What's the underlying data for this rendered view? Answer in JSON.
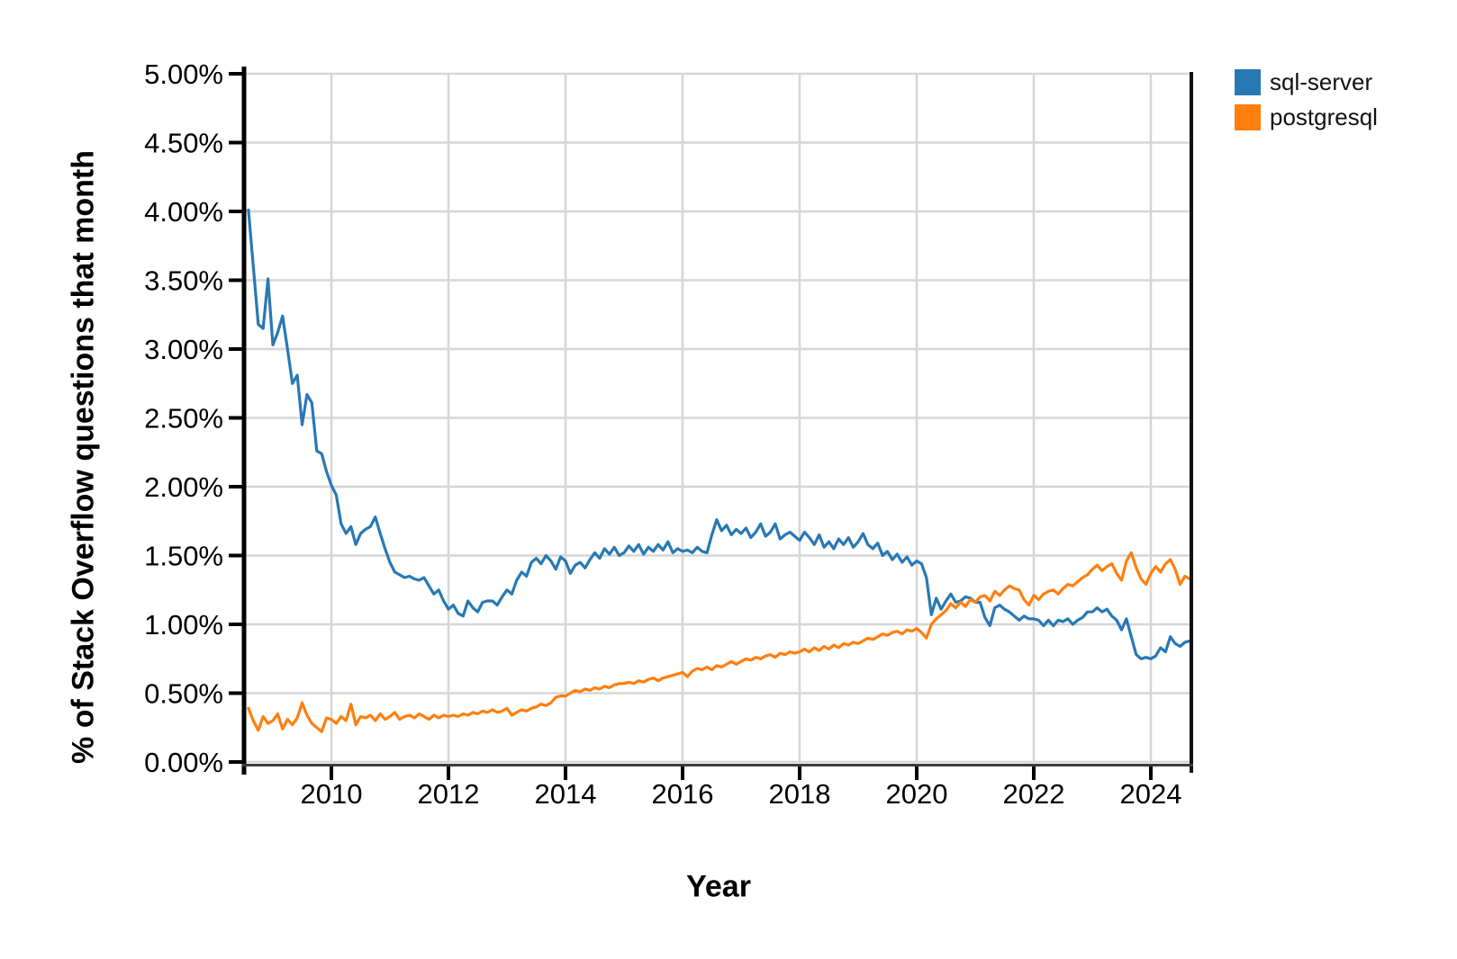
{
  "chart_data": {
    "type": "line",
    "title": "",
    "xlabel": "Year",
    "ylabel": "% of Stack Overflow questions that month",
    "x_start_year": 2008,
    "x_start_month": 8,
    "points_per_year": 12,
    "xlim": [
      2008.54,
      2024.69
    ],
    "ylim": [
      0,
      5
    ],
    "grid": true,
    "x_ticks": [
      2010,
      2012,
      2014,
      2016,
      2018,
      2020,
      2022,
      2024
    ],
    "y_ticks": [
      {
        "value": 0.0,
        "label": "0.00%"
      },
      {
        "value": 0.5,
        "label": "0.50%"
      },
      {
        "value": 1.0,
        "label": "1.00%"
      },
      {
        "value": 1.5,
        "label": "1.50%"
      },
      {
        "value": 2.0,
        "label": "2.00%"
      },
      {
        "value": 2.5,
        "label": "2.50%"
      },
      {
        "value": 3.0,
        "label": "3.00%"
      },
      {
        "value": 3.5,
        "label": "3.50%"
      },
      {
        "value": 4.0,
        "label": "4.00%"
      },
      {
        "value": 4.5,
        "label": "4.50%"
      },
      {
        "value": 5.0,
        "label": "5.00%"
      }
    ],
    "legend_position": "top-right",
    "colors": {
      "sql_server": "#2878b4",
      "postgresql": "#ff7f0e",
      "grid": "#d6d6d6",
      "spine": "#000000"
    },
    "series": [
      {
        "name": "sql-server",
        "color": "#2878b4",
        "values": [
          4.01,
          3.6,
          3.18,
          3.15,
          3.51,
          3.03,
          3.12,
          3.24,
          3.0,
          2.75,
          2.81,
          2.45,
          2.67,
          2.61,
          2.26,
          2.24,
          2.11,
          2.01,
          1.94,
          1.73,
          1.66,
          1.71,
          1.58,
          1.66,
          1.69,
          1.71,
          1.78,
          1.66,
          1.55,
          1.45,
          1.38,
          1.36,
          1.34,
          1.35,
          1.33,
          1.32,
          1.34,
          1.28,
          1.22,
          1.25,
          1.17,
          1.11,
          1.14,
          1.08,
          1.06,
          1.17,
          1.12,
          1.09,
          1.16,
          1.17,
          1.17,
          1.14,
          1.2,
          1.25,
          1.22,
          1.32,
          1.38,
          1.35,
          1.45,
          1.48,
          1.44,
          1.5,
          1.46,
          1.4,
          1.49,
          1.46,
          1.37,
          1.43,
          1.45,
          1.41,
          1.47,
          1.52,
          1.48,
          1.55,
          1.51,
          1.56,
          1.5,
          1.52,
          1.57,
          1.53,
          1.58,
          1.51,
          1.56,
          1.53,
          1.58,
          1.54,
          1.6,
          1.52,
          1.55,
          1.53,
          1.54,
          1.52,
          1.56,
          1.53,
          1.52,
          1.65,
          1.76,
          1.68,
          1.72,
          1.65,
          1.69,
          1.66,
          1.7,
          1.63,
          1.67,
          1.73,
          1.64,
          1.67,
          1.73,
          1.62,
          1.65,
          1.67,
          1.64,
          1.61,
          1.67,
          1.63,
          1.58,
          1.65,
          1.56,
          1.6,
          1.55,
          1.62,
          1.58,
          1.63,
          1.56,
          1.6,
          1.66,
          1.58,
          1.55,
          1.59,
          1.5,
          1.53,
          1.47,
          1.51,
          1.45,
          1.49,
          1.43,
          1.46,
          1.44,
          1.34,
          1.07,
          1.19,
          1.11,
          1.17,
          1.22,
          1.16,
          1.17,
          1.2,
          1.19,
          1.16,
          1.16,
          1.05,
          0.99,
          1.12,
          1.14,
          1.11,
          1.09,
          1.06,
          1.03,
          1.06,
          1.04,
          1.04,
          1.03,
          0.99,
          1.03,
          0.99,
          1.03,
          1.02,
          1.04,
          1.0,
          1.03,
          1.05,
          1.09,
          1.09,
          1.12,
          1.09,
          1.11,
          1.06,
          1.03,
          0.96,
          1.04,
          0.91,
          0.78,
          0.75,
          0.76,
          0.75,
          0.77,
          0.83,
          0.8,
          0.91,
          0.86,
          0.84,
          0.87,
          0.88
        ]
      },
      {
        "name": "postgresql",
        "color": "#ff7f0e",
        "values": [
          0.39,
          0.3,
          0.23,
          0.33,
          0.28,
          0.3,
          0.35,
          0.24,
          0.31,
          0.27,
          0.32,
          0.43,
          0.34,
          0.28,
          0.25,
          0.22,
          0.32,
          0.31,
          0.28,
          0.33,
          0.3,
          0.42,
          0.27,
          0.33,
          0.32,
          0.34,
          0.3,
          0.35,
          0.31,
          0.33,
          0.36,
          0.31,
          0.33,
          0.34,
          0.32,
          0.35,
          0.33,
          0.31,
          0.34,
          0.32,
          0.34,
          0.33,
          0.34,
          0.33,
          0.35,
          0.34,
          0.36,
          0.35,
          0.37,
          0.36,
          0.38,
          0.36,
          0.37,
          0.39,
          0.34,
          0.36,
          0.38,
          0.37,
          0.39,
          0.4,
          0.42,
          0.41,
          0.43,
          0.47,
          0.48,
          0.48,
          0.5,
          0.52,
          0.51,
          0.53,
          0.52,
          0.54,
          0.53,
          0.55,
          0.54,
          0.56,
          0.57,
          0.57,
          0.58,
          0.57,
          0.59,
          0.58,
          0.6,
          0.61,
          0.59,
          0.61,
          0.62,
          0.63,
          0.64,
          0.65,
          0.62,
          0.66,
          0.68,
          0.67,
          0.69,
          0.67,
          0.7,
          0.69,
          0.71,
          0.73,
          0.71,
          0.73,
          0.75,
          0.74,
          0.76,
          0.75,
          0.77,
          0.78,
          0.76,
          0.79,
          0.78,
          0.8,
          0.79,
          0.8,
          0.82,
          0.8,
          0.83,
          0.81,
          0.84,
          0.82,
          0.85,
          0.83,
          0.86,
          0.85,
          0.87,
          0.86,
          0.88,
          0.9,
          0.89,
          0.91,
          0.93,
          0.92,
          0.94,
          0.95,
          0.93,
          0.96,
          0.95,
          0.97,
          0.94,
          0.9,
          1.0,
          1.04,
          1.07,
          1.1,
          1.15,
          1.12,
          1.16,
          1.13,
          1.18,
          1.16,
          1.2,
          1.21,
          1.17,
          1.24,
          1.21,
          1.25,
          1.28,
          1.26,
          1.25,
          1.18,
          1.14,
          1.21,
          1.18,
          1.22,
          1.24,
          1.25,
          1.22,
          1.26,
          1.29,
          1.28,
          1.31,
          1.34,
          1.36,
          1.4,
          1.43,
          1.39,
          1.42,
          1.44,
          1.37,
          1.32,
          1.46,
          1.52,
          1.41,
          1.33,
          1.29,
          1.37,
          1.42,
          1.38,
          1.44,
          1.47,
          1.4,
          1.29,
          1.35,
          1.33
        ]
      }
    ]
  }
}
